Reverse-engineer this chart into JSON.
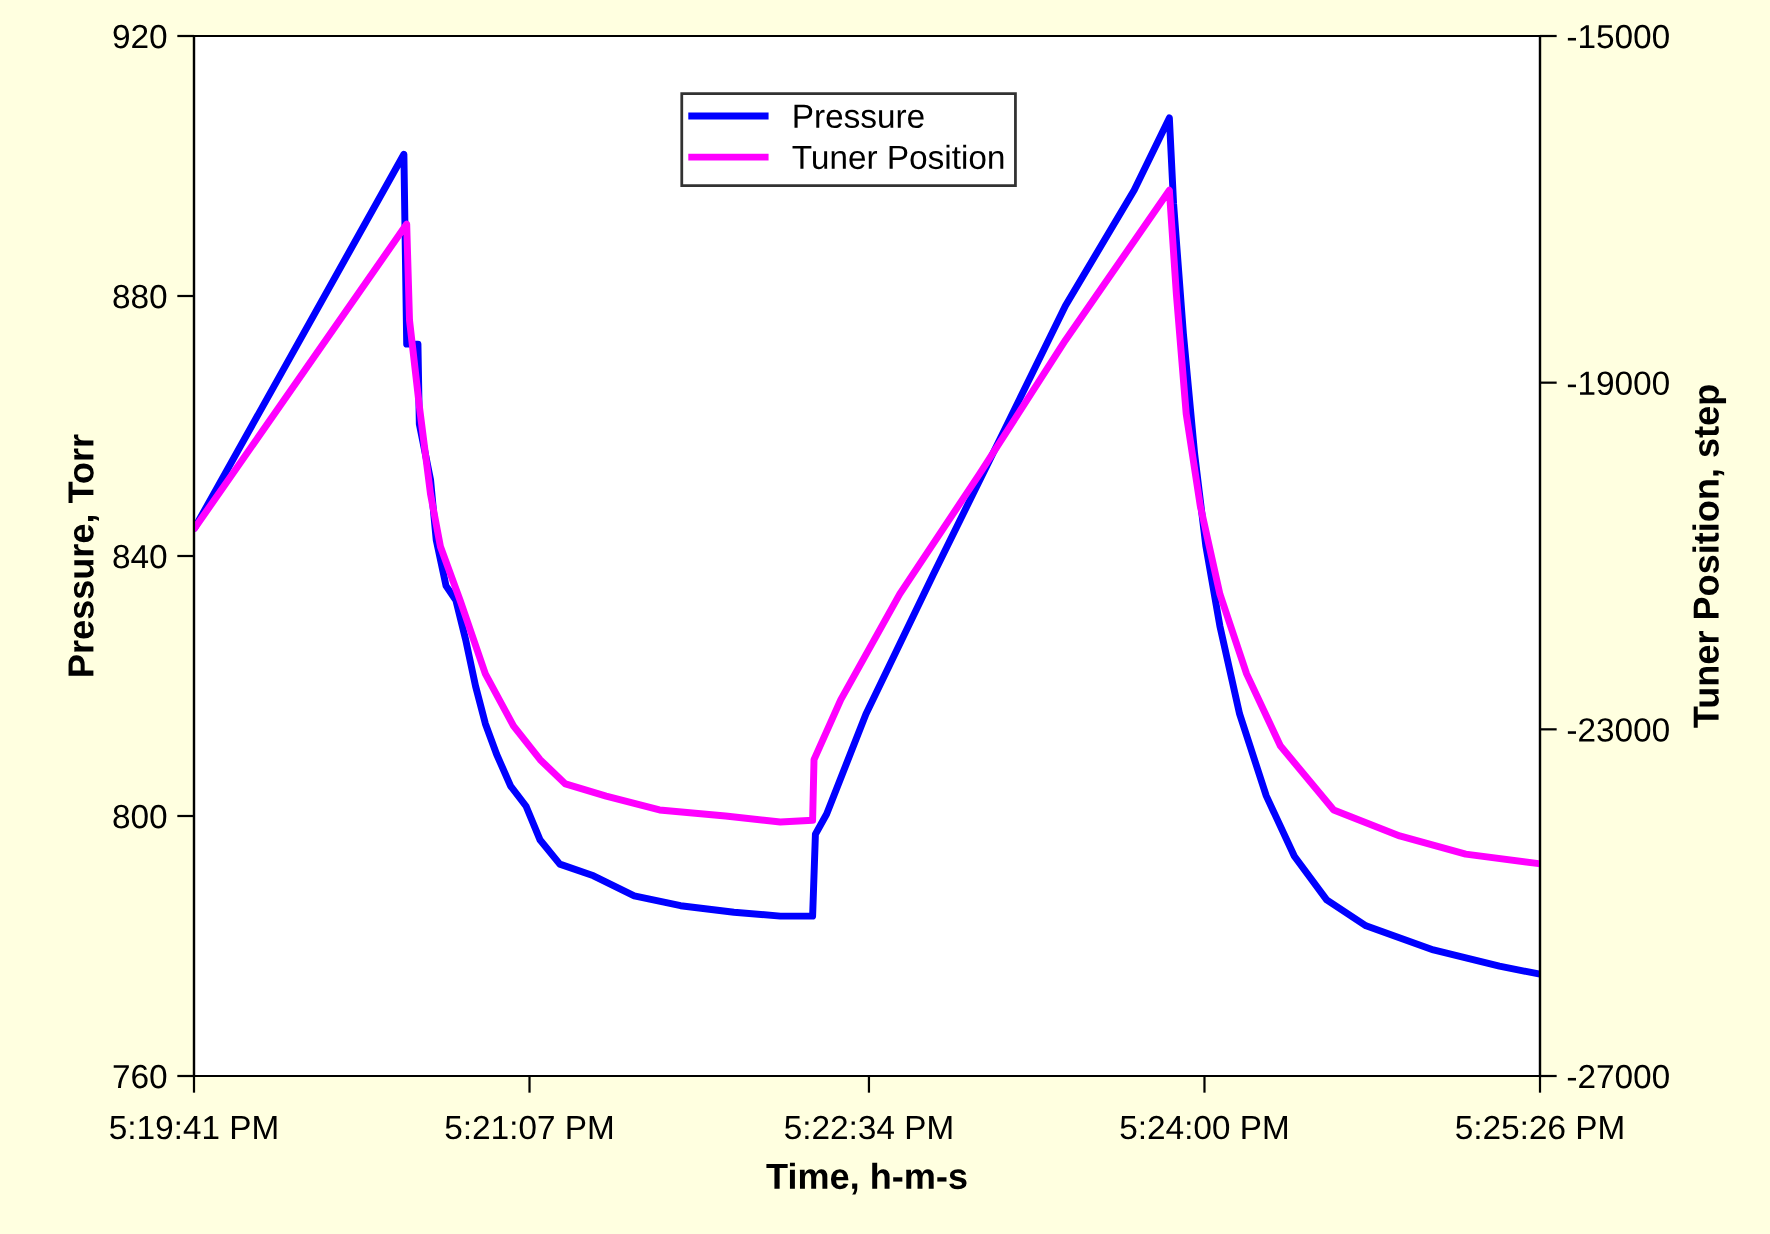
{
  "chart_data": {
    "type": "line",
    "xlabel": "Time, h-m-s",
    "ylabel": "Pressure, Torr",
    "y2label": "Tuner Position, step",
    "xlim": [
      17.328056,
      17.423889
    ],
    "xticks": [
      {
        "value": 17.328056,
        "label": "5:19:41 PM"
      },
      {
        "value": 17.351944,
        "label": "5:21:07 PM"
      },
      {
        "value": 17.376111,
        "label": "5:22:34 PM"
      },
      {
        "value": 17.4,
        "label": "5:24:00 PM"
      },
      {
        "value": 17.423889,
        "label": "5:25:26 PM"
      }
    ],
    "ylim": [
      760,
      920
    ],
    "yticks": [
      760,
      800,
      840,
      880,
      920
    ],
    "y2lim": [
      -27000,
      -15000
    ],
    "y2ticks": [
      -27000,
      -23000,
      -19000,
      -15000
    ],
    "legend": "top",
    "grid": false,
    "series": [
      {
        "name": "Pressure",
        "color": "#0000ff",
        "x": [
          17.3281,
          17.343,
          17.3432,
          17.344,
          17.3441,
          17.3449,
          17.3453,
          17.346,
          17.3467,
          17.3474,
          17.3481,
          17.3488,
          17.3496,
          17.3506,
          17.3517,
          17.3527,
          17.3541,
          17.3565,
          17.3594,
          17.3627,
          17.3665,
          17.3698,
          17.3719,
          17.3721,
          17.3723,
          17.3731,
          17.3759,
          17.3807,
          17.3854,
          17.3901,
          17.395,
          17.3975,
          17.3978,
          17.3985,
          17.3993,
          17.4001,
          17.4011,
          17.4025,
          17.4044,
          17.4064,
          17.4087,
          17.4115,
          17.4163,
          17.421,
          17.4238
        ],
        "values": [
          844.3,
          901.8,
          872.6,
          872.6,
          860.3,
          851.7,
          842.5,
          835.4,
          833.2,
          827.1,
          820.0,
          814.2,
          809.5,
          804.6,
          801.5,
          796.3,
          792.6,
          790.8,
          787.7,
          786.2,
          785.2,
          784.6,
          784.6,
          784.6,
          797.2,
          800.3,
          815.7,
          837.2,
          857.8,
          878.5,
          896.3,
          907.4,
          894.2,
          874.2,
          855.7,
          841.5,
          829.2,
          815.7,
          803.1,
          793.8,
          787.1,
          783.1,
          779.4,
          776.9,
          775.7
        ]
      },
      {
        "name": "Tuner Position",
        "color": "#ff00ff",
        "axis": "y2",
        "x": [
          17.3281,
          17.3432,
          17.3434,
          17.3441,
          17.3449,
          17.3456,
          17.347,
          17.3488,
          17.3508,
          17.3527,
          17.3545,
          17.3574,
          17.3612,
          17.3659,
          17.3698,
          17.3721,
          17.3722,
          17.3741,
          17.3783,
          17.384,
          17.3901,
          17.3975,
          17.398,
          17.3987,
          17.3997,
          17.4011,
          17.403,
          17.4054,
          17.4092,
          17.4139,
          17.4186,
          17.4238
        ],
        "values": [
          -20680,
          -17170,
          -18280,
          -19270,
          -20290,
          -20890,
          -21510,
          -22360,
          -22960,
          -23350,
          -23630,
          -23770,
          -23930,
          -24000,
          -24070,
          -24050,
          -23350,
          -22660,
          -21440,
          -20050,
          -18510,
          -16780,
          -17980,
          -19360,
          -20420,
          -21440,
          -22360,
          -23190,
          -23930,
          -24230,
          -24440,
          -24550
        ]
      }
    ]
  }
}
